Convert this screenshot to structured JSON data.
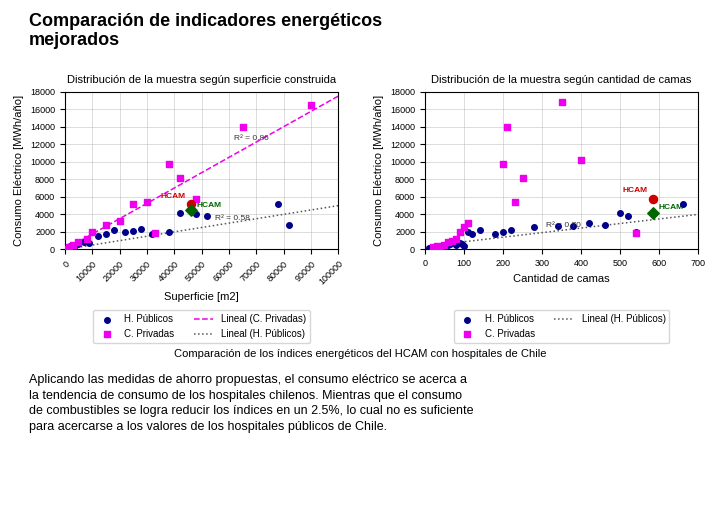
{
  "title": "Comparación de indicadores energéticos\nmejorados",
  "caption": "Comparación de los índices energéticos del HCAM con hospitales de Chile",
  "body_text": "Aplicando las medidas de ahorro propuestas, el consumo eléctrico se acerca a\nla tendencia de consumo de los hospitales chilenos. Mientras que el consumo\nde combustibles se logra reducir los índices en un 2.5%, lo cual no es suficiente\npara acercarse a los valores de los hospitales públicos de Chile.",
  "chart_data": [
    {
      "type": "scatter",
      "title": "Distribución de la muestra según superficie construida",
      "xlabel": "Superficie [m2]",
      "ylabel": "Consumo Eléctrico [MWh/año]",
      "xlim": [
        0,
        100000
      ],
      "ylim": [
        0,
        18000
      ],
      "xticks": [
        0,
        10000,
        20000,
        30000,
        40000,
        50000,
        60000,
        70000,
        80000,
        90000,
        100000
      ],
      "yticks": [
        0,
        2000,
        4000,
        6000,
        8000,
        10000,
        12000,
        14000,
        16000,
        18000
      ],
      "grid": true,
      "legend": "upper center",
      "series": [
        {
          "name": "H. Públicos",
          "type": "scatter",
          "color": "#00008b",
          "marker": "o",
          "x": [
            1000,
            2000,
            3500,
            5000,
            7000,
            9000,
            12000,
            15000,
            18000,
            22000,
            25000,
            28000,
            32000,
            38000,
            42000,
            48000,
            52000,
            78000,
            82000
          ],
          "values": [
            200,
            400,
            300,
            600,
            800,
            700,
            1500,
            1800,
            2200,
            2000,
            2100,
            2300,
            1800,
            2000,
            4200,
            4000,
            3800,
            5200,
            2800
          ]
        },
        {
          "name": "C. Privadas",
          "type": "scatter",
          "color": "#ee00ee",
          "marker": "s",
          "x": [
            500,
            1500,
            3000,
            5000,
            8000,
            10000,
            15000,
            20000,
            25000,
            30000,
            33000,
            38000,
            42000,
            48000,
            65000,
            90000
          ],
          "values": [
            100,
            300,
            500,
            800,
            1200,
            2000,
            2800,
            3200,
            5200,
            5400,
            1900,
            9800,
            8200,
            5800,
            14000,
            16500
          ]
        },
        {
          "name": "Lineal (C. Privadas)",
          "type": "line",
          "color": "#ee00ee",
          "line_style": "dashed",
          "x": [
            0,
            100000
          ],
          "values": [
            0,
            17500
          ]
        },
        {
          "name": "Lineal (H. Públicos)",
          "type": "line",
          "color": "#555555",
          "line_style": "dotted",
          "x": [
            0,
            100000
          ],
          "values": [
            0,
            5000
          ]
        }
      ],
      "annotations": [
        {
          "text": "HCAM",
          "x": 46000,
          "y": 5200,
          "color": "#cc0000",
          "marker": "o"
        },
        {
          "text": "HCAM",
          "x": 46000,
          "y": 4500,
          "color": "#006600",
          "marker": "D"
        },
        {
          "text": "R² = 0.86",
          "x": 62000,
          "y": 12500
        },
        {
          "text": "R² = 0.58",
          "x": 55000,
          "y": 3300
        }
      ]
    },
    {
      "type": "scatter",
      "title": "Distribución de la muestra según cantidad de camas",
      "xlabel": "Cantidad de camas",
      "ylabel": "Consumo Eléctrico [MWh/año]",
      "xlim": [
        0,
        700
      ],
      "ylim": [
        0,
        18000
      ],
      "xticks": [
        0,
        100,
        200,
        300,
        400,
        500,
        600,
        700
      ],
      "yticks": [
        0,
        2000,
        4000,
        6000,
        8000,
        10000,
        12000,
        14000,
        16000,
        18000
      ],
      "grid": true,
      "legend": "upper center",
      "series": [
        {
          "name": "H. Públicos",
          "type": "scatter",
          "color": "#00008b",
          "marker": "o",
          "x": [
            10,
            20,
            30,
            40,
            50,
            60,
            65,
            70,
            80,
            90,
            95,
            100,
            110,
            120,
            140,
            180,
            200,
            220,
            280,
            340,
            380,
            420,
            460,
            500,
            520,
            540,
            660
          ],
          "values": [
            200,
            100,
            400,
            200,
            300,
            500,
            600,
            800,
            500,
            700,
            600,
            400,
            2000,
            1800,
            2200,
            1800,
            2000,
            2200,
            2500,
            2700,
            2700,
            3000,
            2800,
            4200,
            3800,
            2000,
            5200
          ]
        },
        {
          "name": "C. Privadas",
          "type": "scatter",
          "color": "#ee00ee",
          "marker": "s",
          "x": [
            20,
            30,
            40,
            50,
            60,
            70,
            80,
            90,
            100,
            110,
            200,
            210,
            230,
            250,
            350,
            400,
            540
          ],
          "values": [
            300,
            400,
            200,
            500,
            800,
            1000,
            1200,
            2000,
            2500,
            3000,
            9800,
            14000,
            5400,
            8200,
            16800,
            10200,
            1900
          ]
        },
        {
          "name": "Lineal (H. Públicos)",
          "type": "line",
          "color": "#555555",
          "line_style": "dotted",
          "x": [
            0,
            700
          ],
          "values": [
            350,
            4000
          ]
        }
      ],
      "annotations": [
        {
          "text": "HCAM",
          "x": 583,
          "y": 5800,
          "color": "#cc0000",
          "marker": "o"
        },
        {
          "text": "HCAM",
          "x": 583,
          "y": 4200,
          "color": "#006600",
          "marker": "D"
        },
        {
          "text": "R² = 0.70",
          "x": 310,
          "y": 2600
        }
      ]
    }
  ]
}
